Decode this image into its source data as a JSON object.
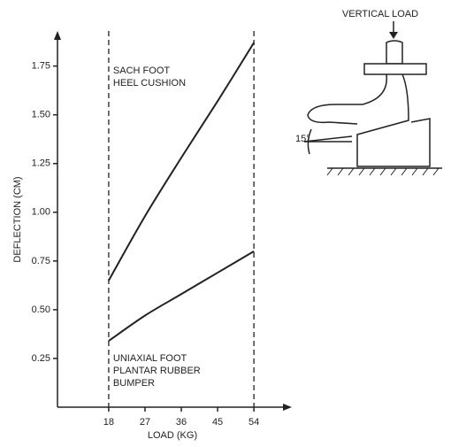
{
  "chart_data": {
    "type": "line",
    "x_label": "LOAD (KG)",
    "y_label": "DEFLECTION (CM)",
    "x": [
      18,
      27,
      36,
      45,
      54
    ],
    "series": [
      {
        "name": [
          "SACH FOOT",
          "HEEL CUSHION"
        ],
        "color": "#222222",
        "values": [
          0.65,
          0.98,
          1.28,
          1.57,
          1.87
        ]
      },
      {
        "name": [
          "UNIAXIAL FOOT",
          "PLANTAR RUBBER",
          "BUMPER"
        ],
        "color": "#222222",
        "values": [
          0.34,
          0.47,
          0.58,
          0.69,
          0.8
        ]
      }
    ],
    "xlim": [
      5.3,
      63.4
    ],
    "xticks": [
      18,
      27,
      36,
      45,
      54
    ],
    "ylim": [
      0,
      1.93
    ],
    "yticks": [
      0.25,
      {
        "value": 0.5,
        "label": "0.50"
      },
      0.75,
      {
        "value": 1.0,
        "label": "1.00"
      },
      1.25,
      {
        "value": 1.5,
        "label": "1.50"
      },
      1.75
    ],
    "dashed_lines_x": [
      18,
      54
    ],
    "grid": false,
    "diagram": {
      "load_label": "VERTICAL LOAD",
      "angle_label": "15°"
    }
  }
}
